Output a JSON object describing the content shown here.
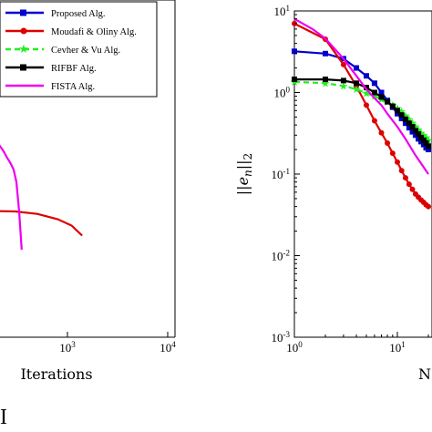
{
  "chart_data": [
    {
      "type": "line",
      "xscale": "log",
      "xlim": [
        10,
        10000
      ],
      "xticks": [
        {
          "value": 1000,
          "base": "10",
          "exp": "3"
        },
        {
          "value": 10000,
          "base": "10",
          "exp": "4"
        }
      ],
      "xlabel": "Iterations",
      "legend": {
        "placement": "top-right",
        "entries": [
          {
            "name": "Proposed Alg.",
            "color": "#0000cc",
            "marker": "square",
            "dash": "solid"
          },
          {
            "name": "Moudafi & Oliny Alg.",
            "color": "#dd0000",
            "marker": "circle",
            "dash": "solid"
          },
          {
            "name": "Cevher & Vu Alg.",
            "color": "#22ee22",
            "marker": "star",
            "dash": "dashed"
          },
          {
            "name": "RIFBF Alg.",
            "color": "#000000",
            "marker": "square",
            "dash": "solid"
          },
          {
            "name": "FISTA Alg.",
            "color": "#ee00ee",
            "marker": "none",
            "dash": "solid"
          }
        ]
      },
      "series": [
        {
          "name": "Moudafi & Oliny Alg.",
          "color": "#dd0000",
          "x": [
            10,
            60,
            150,
            300,
            500,
            800,
            1100,
            1400
          ],
          "y": [
            0.3,
            0.31,
            0.305,
            0.3,
            0.28,
            0.24,
            0.2,
            0.15
          ]
        },
        {
          "name": "FISTA Alg.",
          "color": "#ee00ee",
          "x": [
            150,
            170,
            190,
            210,
            230,
            250,
            270,
            290,
            310,
            330,
            350
          ],
          "y": [
            3.6,
            3.0,
            2.4,
            2.0,
            1.7,
            1.4,
            1.2,
            1.0,
            0.7,
            0.3,
            0.1
          ]
        }
      ],
      "panel_label": "I"
    },
    {
      "type": "line",
      "xscale": "log",
      "yscale": "log",
      "xlim": [
        1,
        100
      ],
      "ylim": [
        0.001,
        10
      ],
      "xticks": [
        {
          "value": 1,
          "base": "10",
          "exp": "0"
        },
        {
          "value": 10,
          "base": "10",
          "exp": "1"
        }
      ],
      "yticks": [
        {
          "value": 0.001,
          "base": "10",
          "exp": "-3"
        },
        {
          "value": 0.01,
          "base": "10",
          "exp": "-2"
        },
        {
          "value": 0.1,
          "base": "10",
          "exp": "-1"
        },
        {
          "value": 1,
          "base": "10",
          "exp": "0"
        },
        {
          "value": 10,
          "base": "10",
          "exp": "1"
        }
      ],
      "ylabel": "||e_n||_2",
      "xlabel": "N",
      "series": [
        {
          "name": "Proposed Alg.",
          "color": "#0000cc",
          "marker": "square",
          "x": [
            1,
            2,
            3,
            4,
            5,
            6,
            7,
            8,
            9,
            10,
            11,
            12,
            13,
            14,
            15,
            16,
            17,
            18,
            19,
            20
          ],
          "y": [
            3.2,
            3.0,
            2.6,
            2.0,
            1.6,
            1.3,
            1.0,
            0.8,
            0.66,
            0.55,
            0.48,
            0.42,
            0.37,
            0.33,
            0.3,
            0.27,
            0.25,
            0.23,
            0.21,
            0.2
          ]
        },
        {
          "name": "Moudafi & Oliny Alg.",
          "color": "#dd0000",
          "marker": "circle",
          "x": [
            1,
            2,
            3,
            4,
            5,
            6,
            7,
            8,
            9,
            10,
            11,
            12,
            13,
            14,
            15,
            16,
            17,
            18,
            19,
            20
          ],
          "y": [
            7.0,
            4.5,
            2.2,
            1.2,
            0.7,
            0.45,
            0.32,
            0.24,
            0.18,
            0.14,
            0.11,
            0.09,
            0.075,
            0.065,
            0.057,
            0.052,
            0.048,
            0.045,
            0.042,
            0.04
          ]
        },
        {
          "name": "Cevher & Vu Alg.",
          "color": "#22ee22",
          "marker": "star",
          "x": [
            1,
            2,
            3,
            4,
            5,
            6,
            7,
            8,
            9,
            10,
            11,
            12,
            13,
            14,
            15,
            16,
            17,
            18,
            19,
            20
          ],
          "y": [
            1.35,
            1.3,
            1.2,
            1.1,
            0.98,
            0.9,
            0.82,
            0.76,
            0.7,
            0.64,
            0.58,
            0.52,
            0.47,
            0.42,
            0.38,
            0.35,
            0.32,
            0.3,
            0.28,
            0.26
          ]
        },
        {
          "name": "RIFBF Alg.",
          "color": "#000000",
          "marker": "square",
          "x": [
            1,
            2,
            3,
            4,
            5,
            6,
            7,
            8,
            9,
            10,
            11,
            12,
            13,
            14,
            15,
            16,
            17,
            18,
            19,
            20
          ],
          "y": [
            1.45,
            1.45,
            1.4,
            1.3,
            1.15,
            1.0,
            0.88,
            0.77,
            0.68,
            0.6,
            0.53,
            0.47,
            0.42,
            0.38,
            0.34,
            0.31,
            0.28,
            0.26,
            0.24,
            0.22
          ]
        },
        {
          "name": "FISTA Alg.",
          "color": "#ee00ee",
          "marker": "none",
          "x": [
            1,
            1.5,
            2,
            3,
            4,
            5,
            6,
            7,
            8,
            10,
            12,
            15,
            20
          ],
          "y": [
            8.0,
            6.0,
            4.6,
            2.6,
            1.6,
            1.1,
            0.85,
            0.7,
            0.55,
            0.38,
            0.27,
            0.17,
            0.1
          ]
        }
      ]
    }
  ]
}
